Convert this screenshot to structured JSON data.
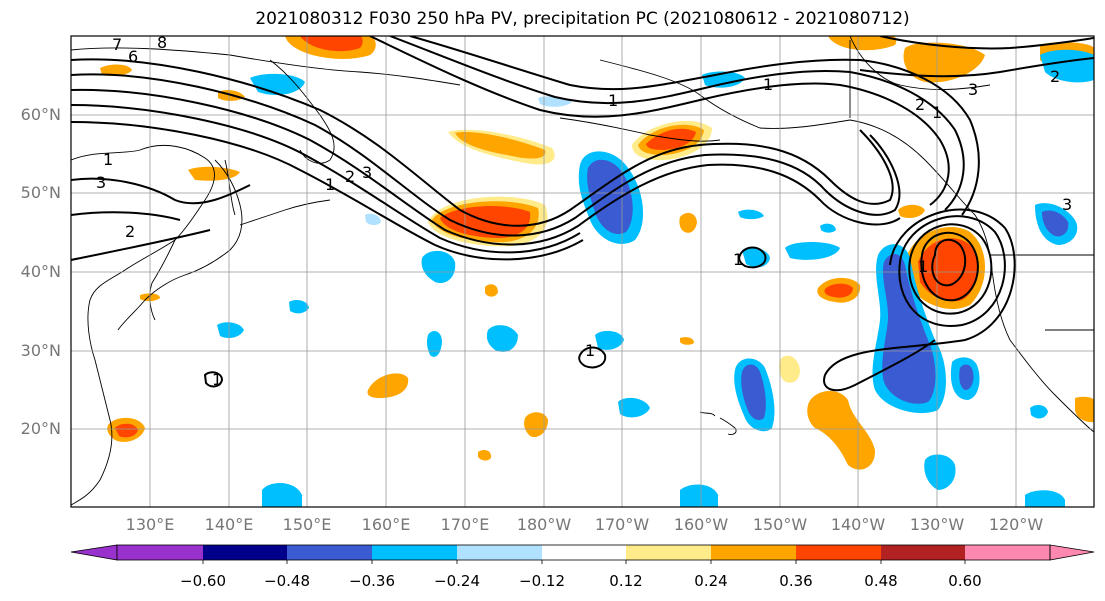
{
  "title": "2021080312 F030 250 hPa PV, precipitation PC (2021080612 - 2021080712)",
  "lat_labels": [
    "60°N",
    "50°N",
    "40°N",
    "30°N",
    "20°N"
  ],
  "lon_labels": [
    "130°E",
    "140°E",
    "150°E",
    "160°E",
    "170°E",
    "180°W",
    "170°W",
    "160°W",
    "150°W",
    "140°W",
    "130°W",
    "120°W"
  ],
  "colorbar": {
    "colors": [
      "#9932cc",
      "#00008b",
      "#3a5bd1",
      "#00bfff",
      "#b0e2ff",
      "#ffffff",
      "#ffeb8a",
      "#ffa500",
      "#ff4500",
      "#b22222",
      "#ff88b0"
    ],
    "tick_labels": [
      "−0.60",
      "−0.48",
      "−0.36",
      "−0.24",
      "−0.12",
      "0.12",
      "0.24",
      "0.36",
      "0.48",
      "0.60"
    ]
  },
  "contour_labels": [
    "1",
    "2",
    "3",
    "1",
    "2",
    "3",
    "6",
    "7",
    "8",
    "1",
    "2",
    "3",
    "1",
    "1",
    "1",
    "1",
    "1",
    "2",
    "3",
    "1"
  ],
  "shading_colors": {
    "negative_light": "#b0e2ff",
    "negative_mid": "#00bfff",
    "negative_strong": "#3a5bd1",
    "negative_vstrong": "#00008b",
    "positive_light": "#ffeb8a",
    "positive_mid": "#ffa500",
    "positive_strong": "#ff4500",
    "positive_vstrong": "#b22222"
  }
}
